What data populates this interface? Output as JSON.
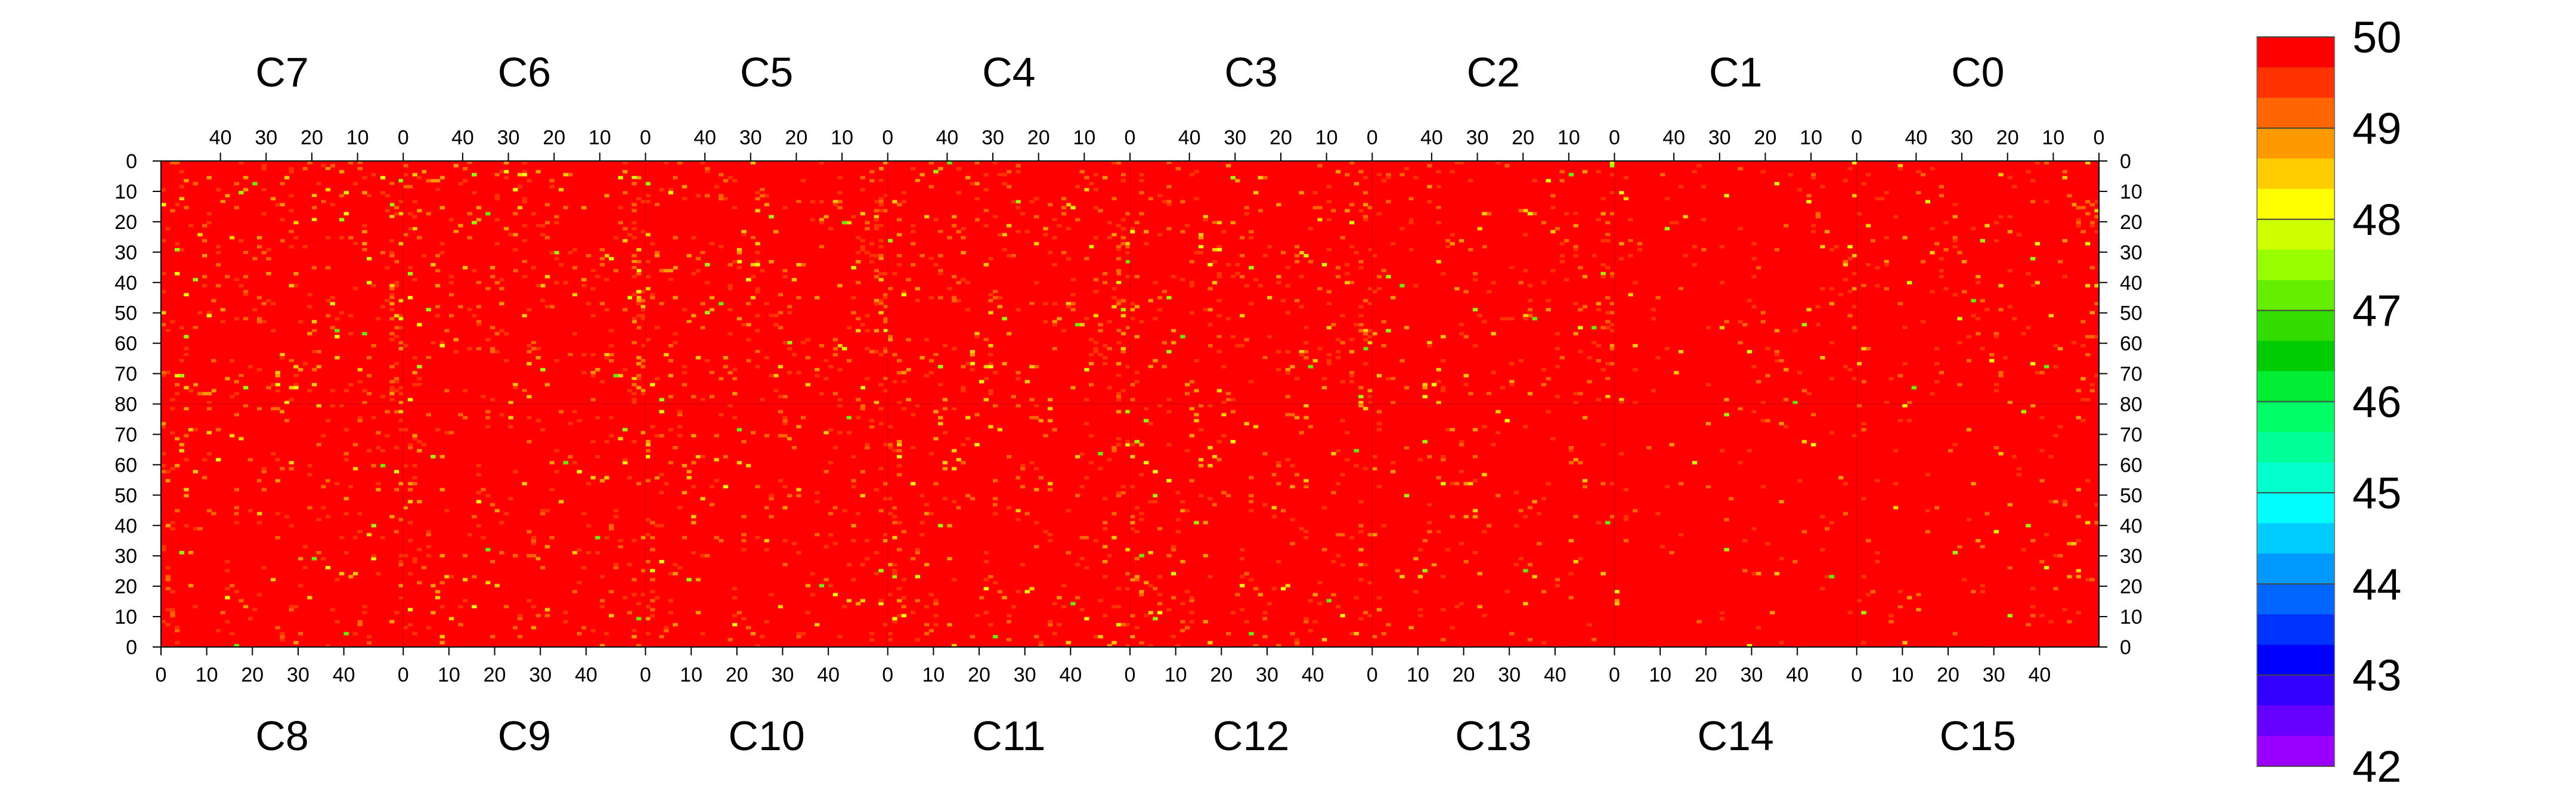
{
  "chart_data": {
    "type": "heatmap",
    "title": "",
    "xlabel": "",
    "ylabel": "",
    "top_row_labels": [
      "C7",
      "C6",
      "C5",
      "C4",
      "C3",
      "C2",
      "C1",
      "C0"
    ],
    "bottom_row_labels": [
      "C8",
      "C9",
      "C10",
      "C11",
      "C12",
      "C13",
      "C14",
      "C15"
    ],
    "top_x_ticks": [
      40,
      30,
      20,
      10,
      0
    ],
    "bottom_x_ticks": [
      0,
      10,
      20,
      30,
      40
    ],
    "top_x_range": [
      53,
      0
    ],
    "bottom_x_range": [
      0,
      53
    ],
    "top_y_ticks": [
      0,
      10,
      20,
      30,
      40,
      50,
      60,
      70,
      80
    ],
    "bottom_y_ticks": [
      70,
      60,
      50,
      40,
      30,
      20,
      10,
      0
    ],
    "y_range_per_half": [
      0,
      80
    ],
    "colorbar": {
      "min": 42,
      "max": 50,
      "ticks": [
        50,
        49,
        48,
        47,
        46,
        45,
        44,
        43,
        42
      ],
      "colors": [
        "#ff0000",
        "#ff3300",
        "#ff6600",
        "#ff9900",
        "#ffcc00",
        "#ffff00",
        "#ccff00",
        "#99ff00",
        "#66ee00",
        "#33dd00",
        "#00cc00",
        "#00ee33",
        "#00ff66",
        "#00ff99",
        "#00ffcc",
        "#00ffff",
        "#00ccff",
        "#0099ff",
        "#0066ff",
        "#0033ff",
        "#0000ff",
        "#3300ff",
        "#6600ff",
        "#9900ff"
      ]
    },
    "base_value": 50,
    "cell_value_distribution": "majority of cells at 50; scattered cells at 49.8 to 48; few near 47",
    "grid": false
  }
}
